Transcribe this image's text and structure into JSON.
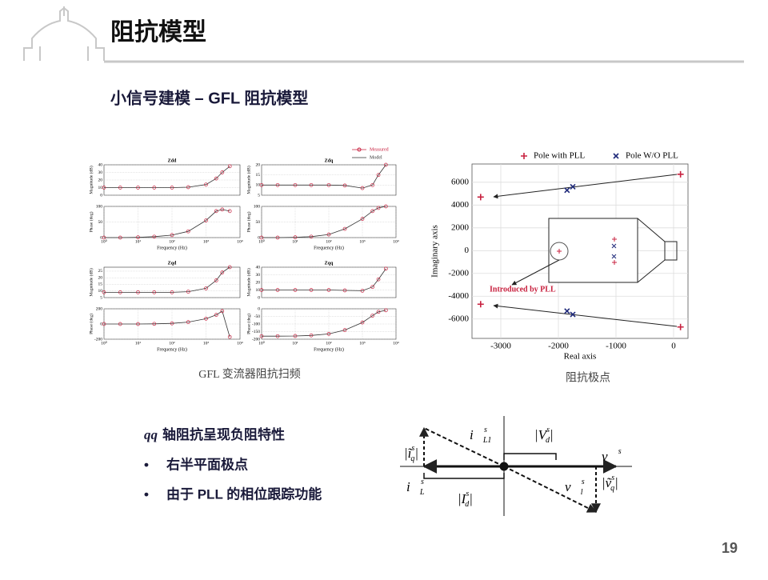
{
  "header": {
    "title": "阻抗模型"
  },
  "subtitle": "小信号建模 – GFL 阻抗模型",
  "left_figure": {
    "caption": "GFL 变流器阻抗扫频",
    "legend": [
      {
        "name": "Measured",
        "color": "#c8213f"
      },
      {
        "name": "Model",
        "color": "#333333"
      }
    ]
  },
  "chart_data": [
    {
      "type": "line",
      "title": "Zdd",
      "ylabel": "Magnitude (dB)",
      "log_x": true,
      "grid": true,
      "x": [
        1,
        3,
        10,
        30,
        100,
        300,
        1000,
        2000,
        3000,
        5000
      ],
      "values": [
        10,
        10,
        10,
        10,
        10,
        10.5,
        14,
        22,
        30,
        38
      ],
      "xlim": [
        1,
        10000
      ],
      "ylim": [
        0,
        40
      ],
      "yticks": [
        0,
        10,
        20,
        30,
        40
      ]
    },
    {
      "type": "line",
      "ylabel": "Phase (deg)",
      "xlabel": "Frequency (Hz)",
      "log_x": true,
      "grid": true,
      "x": [
        1,
        3,
        10,
        30,
        100,
        300,
        1000,
        2000,
        3000,
        5000
      ],
      "values": [
        0,
        0,
        1,
        3,
        8,
        20,
        55,
        85,
        90,
        85
      ],
      "xlim": [
        1,
        10000
      ],
      "ylim": [
        0,
        100
      ],
      "yticks": [
        0,
        50,
        100
      ],
      "xticks": [
        {
          "value": 1,
          "label": "10⁰"
        },
        {
          "value": 10,
          "label": "10¹"
        },
        {
          "value": 100,
          "label": "10²"
        },
        {
          "value": 1000,
          "label": "10³"
        },
        {
          "value": 10000,
          "label": "10⁴"
        }
      ]
    },
    {
      "type": "line",
      "title": "Zdq",
      "ylabel": "Magnitude (dB)",
      "log_x": true,
      "grid": true,
      "x": [
        1,
        3,
        10,
        30,
        100,
        300,
        1000,
        2000,
        3000,
        5000
      ],
      "values": [
        10,
        10,
        10,
        10,
        10,
        9.8,
        8.5,
        10,
        15,
        20
      ],
      "xlim": [
        1,
        10000
      ],
      "ylim": [
        5,
        20
      ],
      "yticks": [
        5,
        10,
        15,
        20
      ]
    },
    {
      "type": "line",
      "ylabel": "Phase (deg)",
      "xlabel": "Frequency (Hz)",
      "log_x": true,
      "grid": true,
      "x": [
        1,
        3,
        10,
        30,
        100,
        300,
        1000,
        2000,
        3000,
        5000
      ],
      "values": [
        0,
        0,
        1,
        3,
        10,
        28,
        60,
        85,
        95,
        100
      ],
      "xlim": [
        1,
        10000
      ],
      "ylim": [
        0,
        100
      ],
      "yticks": [
        0,
        50,
        100
      ],
      "xticks": [
        {
          "value": 1,
          "label": "10⁰"
        },
        {
          "value": 10,
          "label": "10¹"
        },
        {
          "value": 100,
          "label": "10²"
        },
        {
          "value": 1000,
          "label": "10³"
        },
        {
          "value": 10000,
          "label": "10⁴"
        }
      ]
    },
    {
      "type": "line",
      "title": "Zqd",
      "ylabel": "Magnitude (dB)",
      "log_x": true,
      "grid": true,
      "x": [
        1,
        3,
        10,
        30,
        100,
        300,
        1000,
        2000,
        3000,
        5000
      ],
      "values": [
        9,
        9,
        9,
        9,
        9,
        9.5,
        12,
        18,
        24,
        28
      ],
      "xlim": [
        1,
        10000
      ],
      "ylim": [
        5,
        28
      ],
      "yticks": [
        5,
        10,
        15,
        20,
        25
      ]
    },
    {
      "type": "line",
      "ylabel": "Phase (deg)",
      "xlabel": "Frequency (Hz)",
      "log_x": true,
      "grid": true,
      "x": [
        1,
        3,
        10,
        30,
        100,
        300,
        1000,
        2000,
        3000,
        5000
      ],
      "values": [
        0,
        0,
        0,
        2,
        8,
        25,
        70,
        120,
        170,
        -170
      ],
      "xlim": [
        1,
        10000
      ],
      "ylim": [
        -200,
        200
      ],
      "yticks": [
        -200,
        0,
        200
      ],
      "xticks": [
        {
          "value": 1,
          "label": "10⁰"
        },
        {
          "value": 10,
          "label": "10¹"
        },
        {
          "value": 100,
          "label": "10²"
        },
        {
          "value": 1000,
          "label": "10³"
        },
        {
          "value": 10000,
          "label": "10⁴"
        }
      ]
    },
    {
      "type": "line",
      "title": "Zqq",
      "ylabel": "Magnitude (dB)",
      "log_x": true,
      "grid": true,
      "x": [
        1,
        3,
        10,
        30,
        100,
        300,
        1000,
        2000,
        3000,
        5000
      ],
      "values": [
        10,
        10,
        10,
        10,
        10,
        9.5,
        9,
        14,
        24,
        38
      ],
      "xlim": [
        1,
        10000
      ],
      "ylim": [
        0,
        40
      ],
      "yticks": [
        0,
        10,
        20,
        30,
        40
      ]
    },
    {
      "type": "line",
      "ylabel": "Phase (deg)",
      "xlabel": "Frequency (Hz)",
      "log_x": true,
      "grid": true,
      "x": [
        1,
        3,
        10,
        30,
        100,
        300,
        1000,
        2000,
        3000,
        5000
      ],
      "values": [
        -180,
        -180,
        -179,
        -175,
        -165,
        -140,
        -90,
        -45,
        -20,
        -10
      ],
      "xlim": [
        1,
        10000
      ],
      "ylim": [
        -200,
        0
      ],
      "yticks": [
        -200,
        -150,
        -100,
        -50,
        0
      ],
      "xticks": [
        {
          "value": 1,
          "label": "10⁰"
        },
        {
          "value": 10,
          "label": "10¹"
        },
        {
          "value": 100,
          "label": "10²"
        },
        {
          "value": 1000,
          "label": "10³"
        },
        {
          "value": 10000,
          "label": "10⁴"
        }
      ]
    },
    {
      "type": "scatter",
      "caption": "阻抗极点",
      "xlabel": "Real axis",
      "ylabel": "Imaginary axis",
      "grid": true,
      "annotation": "Introduced by PLL",
      "xlim": [
        -3500,
        250
      ],
      "ylim": [
        -7700,
        7600
      ],
      "xticks": [
        -3000,
        -2000,
        -1000,
        0
      ],
      "yticks": [
        -6000,
        -4000,
        -2000,
        0,
        2000,
        4000,
        6000
      ],
      "series": [
        {
          "name": "Pole with PLL",
          "color": "#c8213f",
          "marker": "+",
          "x": [
            -3350,
            -3350,
            120,
            120
          ],
          "values": [
            4700,
            -4700,
            6700,
            -6700
          ]
        },
        {
          "name": "Pole W/O PLL",
          "color": "#1f2a7a",
          "marker": "x",
          "x": [
            -1850,
            -1750,
            -1850,
            -1750
          ],
          "values": [
            5300,
            5600,
            -5300,
            -5600
          ]
        }
      ]
    }
  ],
  "bullets": {
    "heading_var": "qq",
    "heading": "轴阻抗呈现负阻特性",
    "items": [
      "右半平面极点",
      "由于 PLL 的相位跟踪功能"
    ]
  },
  "phasor_labels": [
    {
      "main": "|V",
      "sup": "s",
      "sub": "d",
      "end": "|"
    },
    {
      "main": "v⃗",
      "sup": "s",
      "sub": "",
      "end": ""
    },
    {
      "main": "i⃗",
      "sup": "s",
      "sub": "L1",
      "end": ""
    },
    {
      "main": "|ĩ",
      "sup": "s",
      "sub": "q",
      "end": "|"
    },
    {
      "main": "i⃗",
      "sup": "s",
      "sub": "L",
      "end": ""
    },
    {
      "main": "|I",
      "sup": "s",
      "sub": "d",
      "end": "|"
    },
    {
      "main": "v⃗",
      "sup": "s",
      "sub": "l",
      "end": ""
    },
    {
      "main": "|ṽ",
      "sup": "s",
      "sub": "q",
      "end": "|"
    }
  ],
  "page_number": "19"
}
